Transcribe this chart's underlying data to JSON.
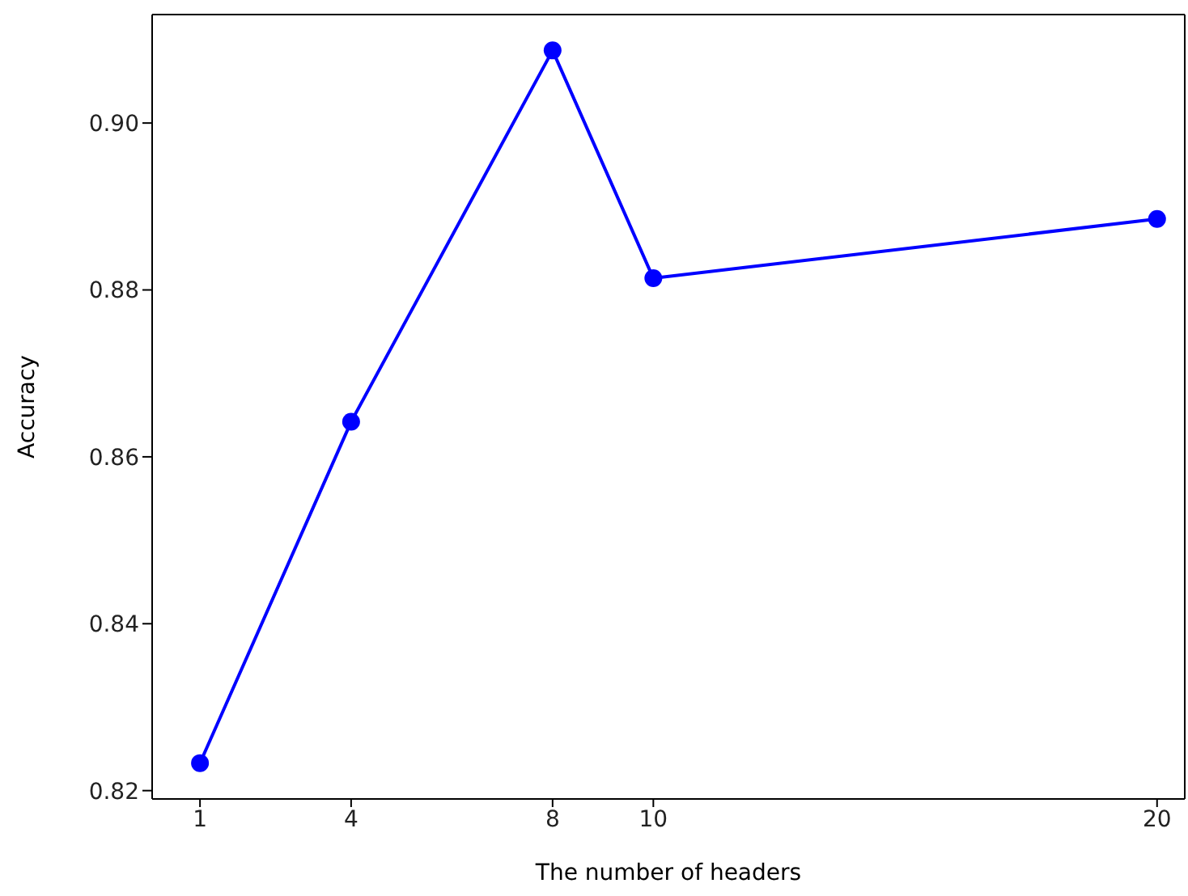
{
  "chart_data": {
    "type": "line",
    "xlabel": "The number of headers",
    "ylabel": "Accuracy",
    "x": [
      1,
      4,
      8,
      10,
      20
    ],
    "series": [
      {
        "color": "#0000ff",
        "values": [
          0.8233,
          0.8642,
          0.9087,
          0.8814,
          0.8885
        ]
      }
    ],
    "xlim": [
      0.05,
      20.55
    ],
    "xticks": [
      1,
      4,
      8,
      10,
      20
    ],
    "ylim": [
      0.819,
      0.913
    ],
    "yticks": [
      0.82,
      0.84,
      0.86,
      0.88,
      {
        "value": 0.9,
        "label": "0.90"
      }
    ],
    "marker": "circle",
    "line_style": "solid",
    "grid": false
  }
}
